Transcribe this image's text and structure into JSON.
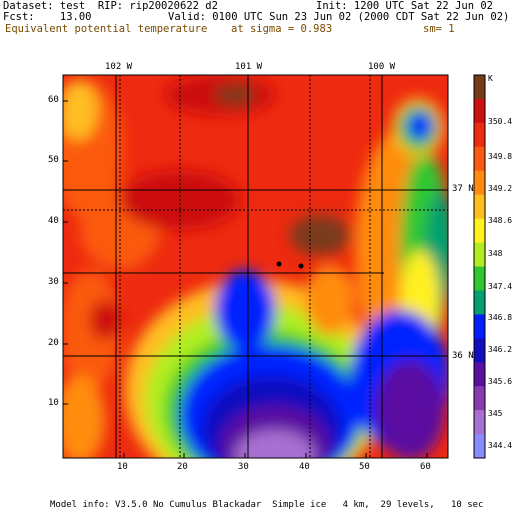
{
  "header": {
    "dataset_line": "Dataset: test  RIP: rip20020622 d2",
    "fcst_line": "Fcst:    13.00",
    "init_line": "Init: 1200 UTC Sat 22 Jun 02",
    "valid_line": "Valid: 0100 UTC Sun 23 Jun 02 (2000 CDT Sat 22 Jun 02)",
    "field_name": "Equivalent potential temperature",
    "level": "at sigma = 0.983",
    "smoothing": "sm= 1"
  },
  "map": {
    "longitude_labels": [
      "102 W",
      "101 W",
      "100 W"
    ],
    "latitude_labels": [
      "37 N",
      "36 N"
    ],
    "x_ticks": [
      "10",
      "20",
      "30",
      "40",
      "50",
      "60"
    ],
    "y_ticks": [
      "10",
      "20",
      "30",
      "40",
      "50",
      "60"
    ]
  },
  "colorbar": {
    "unit": "K",
    "labels": [
      "350.4",
      "349.8",
      "349.2",
      "348.6",
      "348",
      "347.4",
      "346.8",
      "346.2",
      "345.6",
      "345",
      "344.4"
    ],
    "colors": [
      "#7a3a1a",
      "#cc1010",
      "#ee2a10",
      "#fb5a10",
      "#ff8c10",
      "#ffbe20",
      "#fff020",
      "#b0ee20",
      "#30c830",
      "#00a070",
      "#0020ff",
      "#1010c0",
      "#5a10a0",
      "#8a3ab0",
      "#a870d0",
      "#8a8aff"
    ]
  },
  "markers": [
    "station-1",
    "station-2"
  ],
  "footer": "Model info: V3.5.0 No Cumulus Blackadar  Simple ice   4 km,  29 levels,   10 sec"
}
